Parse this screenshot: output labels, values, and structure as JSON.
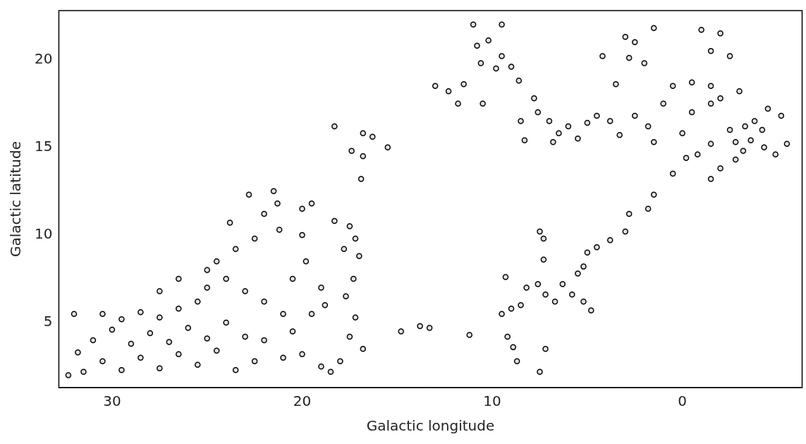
{
  "chart_data": {
    "type": "scatter",
    "x_label": "Galactic longitude",
    "y_label": "Galactic latitude",
    "xlim": [
      32.8,
      -6.3
    ],
    "ylim": [
      1.3,
      22.8
    ],
    "xticks": [
      30,
      20,
      10,
      0
    ],
    "yticks": [
      5,
      10,
      15,
      20
    ],
    "grid": false,
    "color": "#000000",
    "marker": "circle",
    "x": [
      31.5,
      30.5,
      29.5,
      28.5,
      27.5,
      26.5,
      25.5,
      24.5,
      31,
      30,
      29,
      28,
      27,
      26,
      25,
      24,
      30.5,
      29.5,
      28.5,
      27.5,
      26.5,
      25.5,
      32.3,
      31.8,
      32,
      23.5,
      22.5,
      23,
      25,
      24,
      23,
      22,
      21,
      20.5,
      22,
      21,
      24.5,
      23.5,
      22.5,
      23.8,
      25,
      26.5,
      27.5,
      22,
      21.3,
      20,
      21.2,
      19.5,
      20,
      19.8,
      20.5,
      19,
      18.8,
      19.5,
      20,
      19,
      18.5,
      18,
      17.5,
      17.2,
      17.8,
      17,
      18.3,
      17.3,
      17.7,
      17.2,
      17.5,
      16.8,
      16.8,
      16.3,
      15.5,
      16.8,
      17.4,
      16.9,
      18.3,
      21.5,
      22.8,
      14.8,
      13.8,
      13.3,
      11.2,
      9.2,
      8.9,
      8.7,
      7.5,
      7.2,
      9.5,
      9,
      8.5,
      8.2,
      7.6,
      7.2,
      6.7,
      9.3,
      7.3,
      7.5,
      7.3,
      6.3,
      5.8,
      5.2,
      4.8,
      5.2,
      5,
      4.5,
      3.8,
      3,
      5.5,
      2.8,
      1.5,
      0.5,
      1.8,
      13,
      12.3,
      11.5,
      10.8,
      10.2,
      10.6,
      9.5,
      9.8,
      9,
      8.6,
      11.8,
      10.5,
      11,
      9.5,
      7.8,
      7.6,
      7,
      6.5,
      6,
      5.5,
      6.8,
      5,
      4.5,
      3.8,
      3.3,
      2.5,
      1.8,
      8.5,
      8.3,
      3.5,
      4.2,
      3,
      2.5,
      1.5,
      -1,
      -2,
      -1.5,
      -2.5,
      0.5,
      -0.5,
      -1.5,
      -2,
      -1.5,
      1,
      -0.5,
      0,
      -0.8,
      -0.2,
      -1.5,
      -2.5,
      -2.8,
      -3.3,
      -3.8,
      -4.2,
      -3.6,
      -4.3,
      -3.2,
      -2.8,
      -2,
      -1.5,
      -4.5,
      -5.5,
      -5.2,
      -4.9,
      1.5,
      2,
      2.8,
      -3
    ],
    "values": [
      2.2,
      2.8,
      2.3,
      3.0,
      2.4,
      3.2,
      2.6,
      3.4,
      4,
      4.6,
      3.8,
      4.4,
      3.9,
      4.7,
      4.1,
      5.0,
      5.5,
      5.2,
      5.6,
      5.3,
      5.8,
      6.2,
      2.0,
      3.3,
      5.5,
      2.3,
      2.8,
      4.2,
      7,
      7.5,
      6.8,
      6.2,
      5.5,
      4.5,
      4.0,
      3.0,
      8.5,
      9.2,
      9.8,
      10.7,
      8.0,
      7.5,
      6.8,
      11.2,
      11.8,
      11.5,
      10.3,
      11.8,
      10,
      8.5,
      7.5,
      7,
      6,
      5.5,
      3.2,
      2.5,
      2.2,
      2.8,
      10.5,
      9.8,
      9.2,
      8.8,
      10.8,
      7.5,
      6.5,
      5.3,
      4.2,
      3.5,
      15.8,
      15.6,
      15,
      14.5,
      14.8,
      13.2,
      16.2,
      12.5,
      12.3,
      4.5,
      4.8,
      4.7,
      4.3,
      4.2,
      3.6,
      2.8,
      2.2,
      3.5,
      5.5,
      5.8,
      6,
      7,
      7.2,
      6.6,
      6.2,
      7.6,
      8.6,
      10.2,
      9.8,
      7.2,
      6.6,
      6.2,
      5.7,
      8.2,
      9,
      9.3,
      9.7,
      10.2,
      7.8,
      11.2,
      12.3,
      13.5,
      11.5,
      18.5,
      18.2,
      18.6,
      20.8,
      21.1,
      19.8,
      20.2,
      19.5,
      19.6,
      18.8,
      17.5,
      17.5,
      22,
      22,
      17.8,
      17,
      16.5,
      15.8,
      16.2,
      15.5,
      15.3,
      16.4,
      16.8,
      16.5,
      15.7,
      16.8,
      16.2,
      16.5,
      15.4,
      18.6,
      20.2,
      21.3,
      21,
      21.8,
      21.7,
      21.5,
      20.5,
      20.2,
      18.5,
      18.7,
      18.5,
      17.8,
      17.5,
      17.5,
      17,
      15.8,
      14.6,
      14.4,
      15.2,
      16,
      15.3,
      16.2,
      16.5,
      16,
      15.4,
      15,
      14.8,
      14.3,
      13.8,
      13.2,
      17.2,
      15.2,
      16.8,
      14.6,
      15.3,
      19.8,
      20.1,
      18.2
    ]
  }
}
